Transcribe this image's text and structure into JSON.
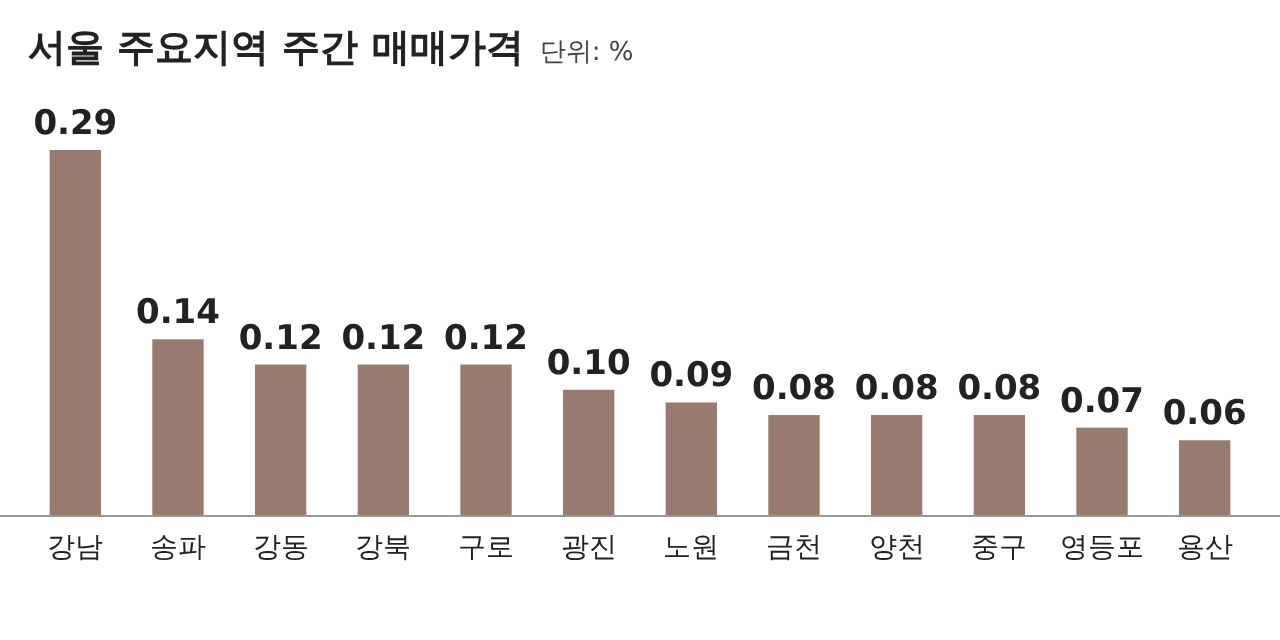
{
  "chart_data": {
    "type": "bar",
    "title": "서울 주요지역 주간 매매가격",
    "subtitle": "단위: %",
    "categories": [
      "강남",
      "송파",
      "강동",
      "강북",
      "구로",
      "광진",
      "노원",
      "금천",
      "양천",
      "중구",
      "영등포",
      "용산"
    ],
    "values": [
      0.29,
      0.14,
      0.12,
      0.12,
      0.12,
      0.1,
      0.09,
      0.08,
      0.08,
      0.08,
      0.07,
      0.06
    ],
    "value_labels": [
      "0.29",
      "0.14",
      "0.12",
      "0.12",
      "0.12",
      "0.10",
      "0.09",
      "0.08",
      "0.08",
      "0.08",
      "0.07",
      "0.06"
    ],
    "color": "#967b6e"
  }
}
